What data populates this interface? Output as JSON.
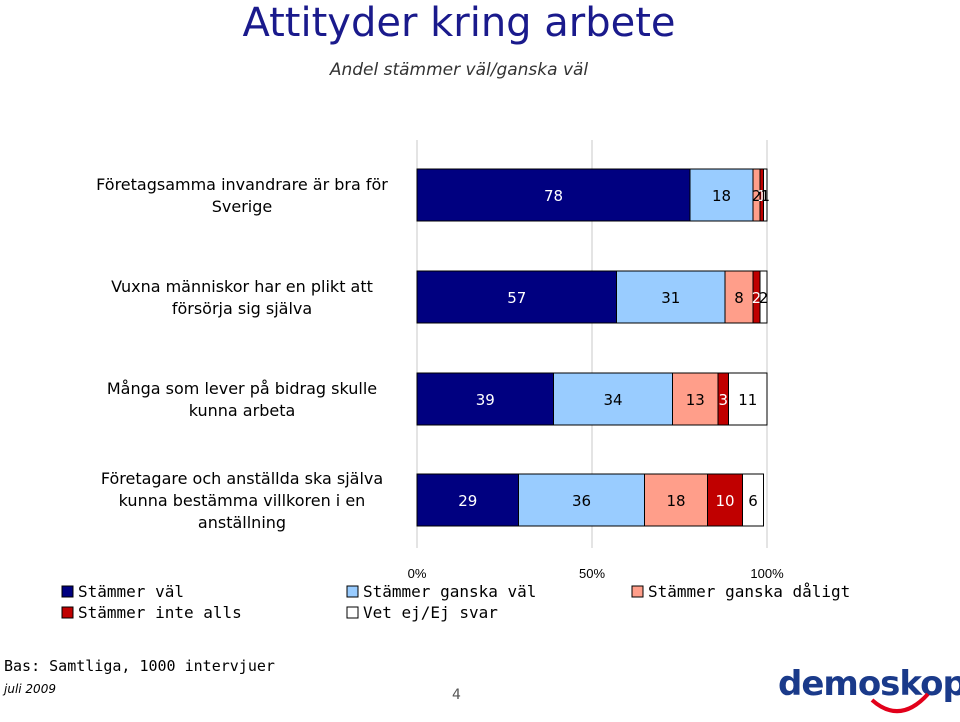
{
  "title": "Attityder kring arbete",
  "subtitle": "Andel stämmer väl/ganska väl",
  "footer": {
    "base": "Bas: Samtliga, 1000 intervjuer",
    "date": "juli 2009",
    "page": "4",
    "logo": "demoskop"
  },
  "colors": {
    "Stämmer väl": "#000080",
    "Stämmer ganska väl": "#99ccff",
    "Stämmer ganska dåligt": "#ff9e8a",
    "Stämmer inte alls": "#c00000",
    "Vet ej/Ej svar": "#ffffff"
  },
  "chart_data": {
    "type": "bar",
    "orientation": "horizontal",
    "stacked": true,
    "categories": [
      "Företagsamma invandrare är bra för Sverige",
      "Vuxna människor har en plikt att försörja sig själva",
      "Många som lever på bidrag skulle kunna arbeta",
      "Företagare och anställda ska själva kunna bestämma villkoren i en anställning"
    ],
    "category_lines": [
      [
        "Företagsamma invandrare är bra för",
        "Sverige"
      ],
      [
        "Vuxna människor har en plikt att",
        "försörja sig själva"
      ],
      [
        "Många som lever på bidrag skulle",
        "kunna arbeta"
      ],
      [
        "Företagare och anställda ska själva",
        "kunna bestämma villkoren i en",
        "anställning"
      ]
    ],
    "series": [
      {
        "name": "Stämmer väl",
        "values": [
          78,
          57,
          39,
          29
        ]
      },
      {
        "name": "Stämmer ganska väl",
        "values": [
          18,
          31,
          34,
          36
        ]
      },
      {
        "name": "Stämmer ganska dåligt",
        "values": [
          2,
          8,
          13,
          18
        ]
      },
      {
        "name": "Stämmer inte alls",
        "values": [
          1,
          2,
          3,
          10
        ]
      },
      {
        "name": "Vet ej/Ej svar",
        "values": [
          1,
          2,
          11,
          6
        ]
      }
    ],
    "xlim": [
      0,
      100
    ],
    "xticks": [
      "0%",
      "50%",
      "100%"
    ],
    "grid": true,
    "legend_position": "bottom"
  }
}
